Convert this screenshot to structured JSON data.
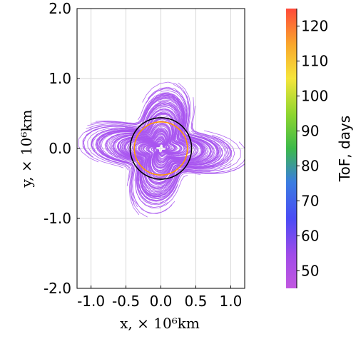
{
  "chart_data": {
    "type": "line",
    "xlabel": "x, × 10⁶km",
    "ylabel": "y, × 10⁶km",
    "x_axis": {
      "ticks": [
        -1.0,
        -0.5,
        0.0,
        0.5,
        1.0
      ],
      "tick_labels": [
        "-1.0",
        "-0.5",
        "0.0",
        "0.5",
        "1.0"
      ],
      "range": [
        -1.2,
        1.2
      ]
    },
    "y_axis": {
      "ticks": [
        -2.0,
        -1.0,
        0.0,
        1.0,
        2.0
      ],
      "tick_labels": [
        "-2.0",
        "-1.0",
        "0.0",
        "1.0",
        "2.0"
      ],
      "range": [
        -2.0,
        2.0
      ]
    },
    "grid": true,
    "aspect": "equal",
    "trajectories": {
      "description_color": "#a855f0",
      "count_estimate": 120,
      "spiral_outer_extent": 0.85,
      "tof_range_days": [
        45,
        50
      ]
    },
    "reference_circles": [
      {
        "radius": 0.44,
        "color": "#000000"
      },
      {
        "radius": 0.38,
        "color": "#ff9a00"
      }
    ],
    "colorbar": {
      "title": "ToF, days",
      "range": [
        45,
        125
      ],
      "ticks": [
        50,
        60,
        70,
        80,
        90,
        100,
        110,
        120
      ],
      "tick_labels": [
        "50",
        "60",
        "70",
        "80",
        "90",
        "100",
        "110",
        "120"
      ],
      "colors": [
        "#c157e0",
        "#8a4bf0",
        "#4a4cf5",
        "#3b7de0",
        "#3cb94a",
        "#8cd52f",
        "#f5e53b",
        "#f9a82c",
        "#ff4a3a"
      ]
    }
  }
}
